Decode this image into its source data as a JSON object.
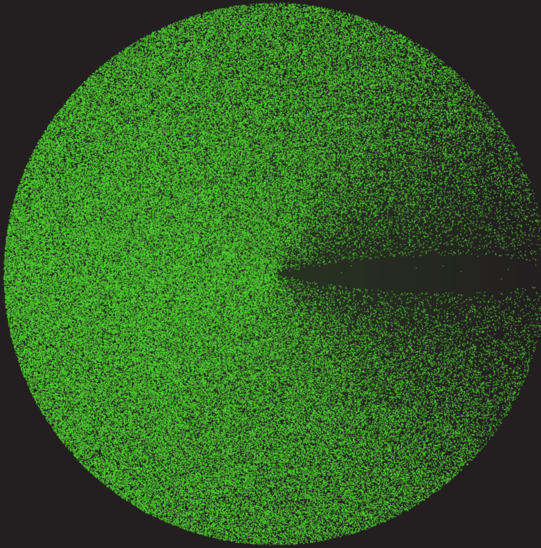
{
  "scene": {
    "subject": "radial-dot-pattern",
    "colors": {
      "background": "#231f20",
      "dot": "#4fd22f"
    },
    "pattern": {
      "shape": "disc",
      "density_falloff": "sparse-toward-right",
      "empty_wedge": "right-of-center"
    }
  }
}
